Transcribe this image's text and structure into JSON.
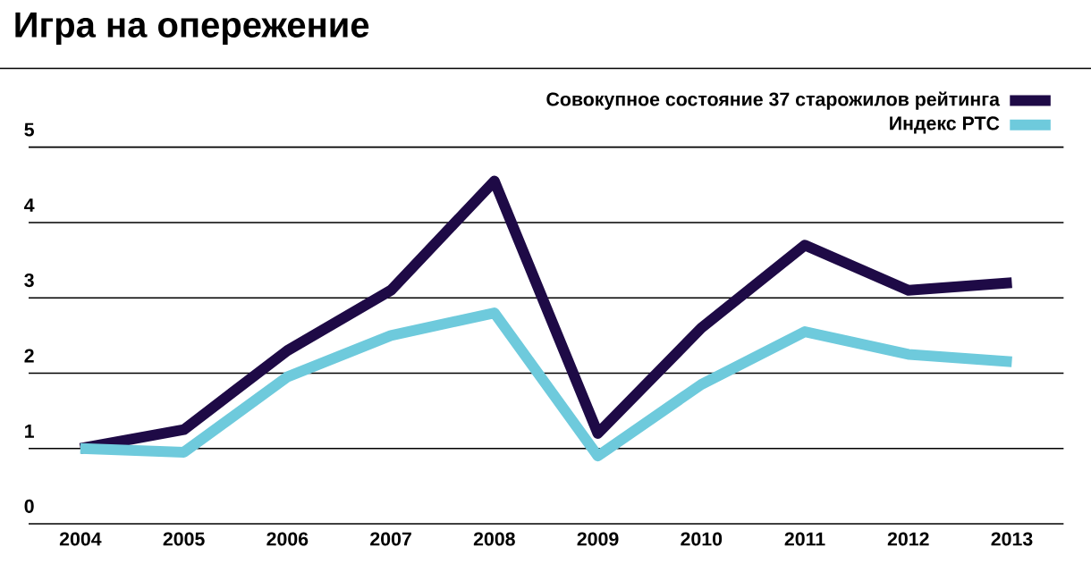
{
  "chart_data": {
    "type": "line",
    "title": "Игра на опережение",
    "categories": [
      "2004",
      "2005",
      "2006",
      "2007",
      "2008",
      "2009",
      "2010",
      "2011",
      "2012",
      "2013"
    ],
    "series": [
      {
        "name": "Совокупное состояние 37 старожилов рейтинга",
        "color": "#1e0a46",
        "values": [
          1.0,
          1.25,
          2.3,
          3.1,
          4.55,
          1.2,
          2.6,
          3.7,
          3.1,
          3.2
        ]
      },
      {
        "name": "Индекс РТС",
        "color": "#6ecadc",
        "values": [
          1.0,
          0.95,
          1.95,
          2.5,
          2.8,
          0.9,
          1.85,
          2.55,
          2.25,
          2.15
        ]
      }
    ],
    "ylim": [
      0,
      5
    ],
    "yticks": [
      0,
      1,
      2,
      3,
      4,
      5
    ],
    "grid": "y",
    "legend": "top right",
    "marker": "none",
    "line_style": "solid"
  }
}
